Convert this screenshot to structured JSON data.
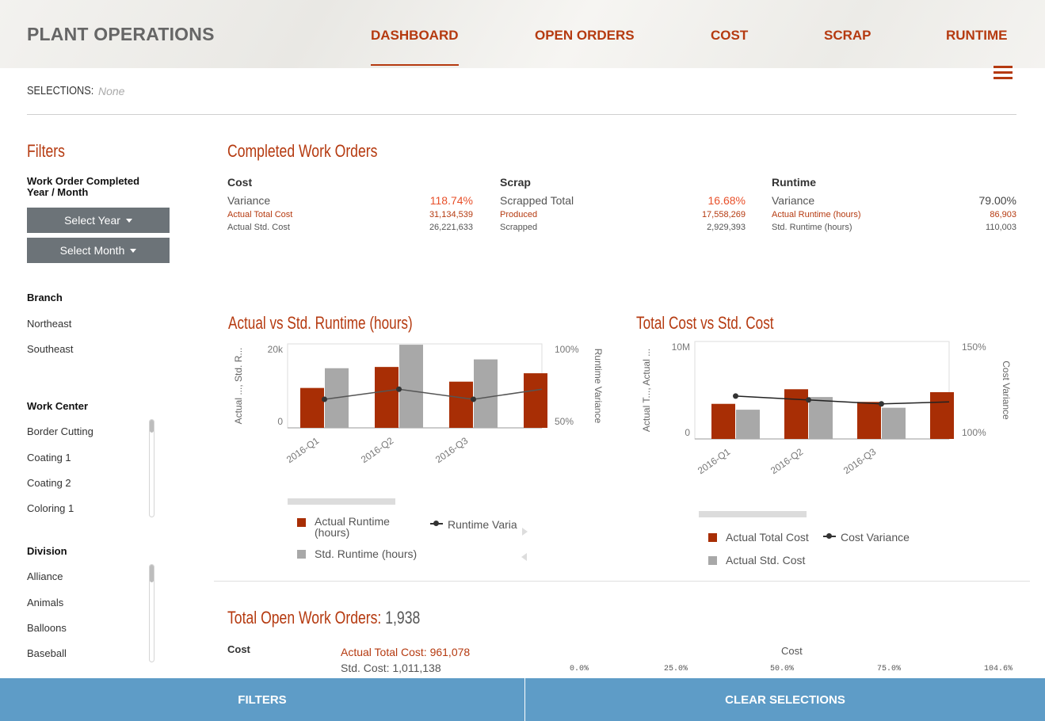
{
  "header": {
    "brand": "PLANT OPERATIONS",
    "nav": [
      "DASHBOARD",
      "OPEN ORDERS",
      "COST",
      "SCRAP",
      "RUNTIME"
    ],
    "accent": "#b53a10"
  },
  "selections": {
    "label": "SELECTIONS:",
    "value": "None"
  },
  "filters": {
    "title": "Filters",
    "date_group": "Work Order Completed Year / Month",
    "year_button": "Select Year",
    "month_button": "Select Month",
    "branch": {
      "title": "Branch",
      "items": [
        "Northeast",
        "Southeast"
      ]
    },
    "work_center": {
      "title": "Work Center",
      "items": [
        "Border Cutting",
        "Coating 1",
        "Coating 2",
        "Coloring 1"
      ]
    },
    "division": {
      "title": "Division",
      "items": [
        "Alliance",
        "Animals",
        "Balloons",
        "Baseball"
      ]
    }
  },
  "completed": {
    "title": "Completed Work Orders",
    "cost": {
      "head": "Cost",
      "main_label": "Variance",
      "main_value": "118.74%",
      "r1_label": "Actual Total Cost",
      "r1_value": "31,134,539",
      "r2_label": "Actual Std. Cost",
      "r2_value": "26,221,633"
    },
    "scrap": {
      "head": "Scrap",
      "main_label": "Scrapped Total",
      "main_value": "16.68%",
      "r1_label": "Produced",
      "r1_value": "17,558,269",
      "r2_label": "Scrapped",
      "r2_value": "2,929,393"
    },
    "runtime": {
      "head": "Runtime",
      "main_label": "Variance",
      "main_value": "79.00%",
      "r1_label": "Actual Runtime (hours)",
      "r1_value": "86,903",
      "r2_label": "Std. Runtime (hours)",
      "r2_value": "110,003"
    }
  },
  "chart_data": [
    {
      "type": "bar",
      "title": "Actual vs Std. Runtime (hours)",
      "categories": [
        "2016-Q1",
        "2016-Q2",
        "2016-Q3",
        ""
      ],
      "ylabel": "Actual ..., Std. R...",
      "y2label": "Runtime Variance",
      "ylim": [
        0,
        20000
      ],
      "y2lim": [
        50,
        100
      ],
      "yticks": [
        "20k",
        "0"
      ],
      "y2ticks": [
        "100%",
        "50%"
      ],
      "series": [
        {
          "name": "Actual Runtime (hours)",
          "kind": "bar",
          "color": "#a82e05",
          "values": [
            9500,
            14500,
            11000,
            13000
          ]
        },
        {
          "name": "Std. Runtime (hours)",
          "kind": "bar",
          "color": "#a8a8a8",
          "values": [
            14200,
            19800,
            16300,
            null
          ]
        },
        {
          "name": "Runtime Variance",
          "kind": "line",
          "axis": "right",
          "color": "#555555",
          "values": [
            67,
            73,
            67,
            73
          ]
        }
      ],
      "legend": [
        "Actual Runtime (hours)",
        "Runtime Varia",
        "Std. Runtime (hours)"
      ]
    },
    {
      "type": "bar",
      "title": "Total Cost vs Std. Cost",
      "categories": [
        "2016-Q1",
        "2016-Q2",
        "2016-Q3",
        ""
      ],
      "ylabel": "Actual T..., Actual ...",
      "y2label": "Cost Variance",
      "ylim": [
        0,
        10000000
      ],
      "y2lim": [
        100,
        150
      ],
      "yticks": [
        "10M",
        "0"
      ],
      "y2ticks": [
        "150%",
        "100%"
      ],
      "series": [
        {
          "name": "Actual Total Cost",
          "kind": "bar",
          "color": "#a82e05",
          "values": [
            3600000,
            5100000,
            3800000,
            4800000
          ]
        },
        {
          "name": "Actual Std. Cost",
          "kind": "bar",
          "color": "#a8a8a8",
          "values": [
            3000000,
            4300000,
            3200000,
            null
          ]
        },
        {
          "name": "Cost Variance",
          "kind": "line",
          "axis": "right",
          "color": "#222222",
          "values": [
            122,
            120,
            118,
            119
          ]
        }
      ],
      "legend": [
        "Actual Total Cost",
        "Cost Variance",
        "Actual Std. Cost"
      ]
    }
  ],
  "open_orders": {
    "title": "Total Open Work Orders:",
    "count": "1,938",
    "cost_label": "Cost",
    "actual_cost": "Actual Total Cost: 961,078",
    "std_cost": "Std. Cost: 1,011,138",
    "gauge_title": "Cost",
    "gauge_ticks": [
      "0.0%",
      "25.0%",
      "50.0%",
      "75.0%",
      "104.6%"
    ]
  },
  "footer": {
    "filters": "FILTERS",
    "clear": "CLEAR SELECTIONS"
  }
}
